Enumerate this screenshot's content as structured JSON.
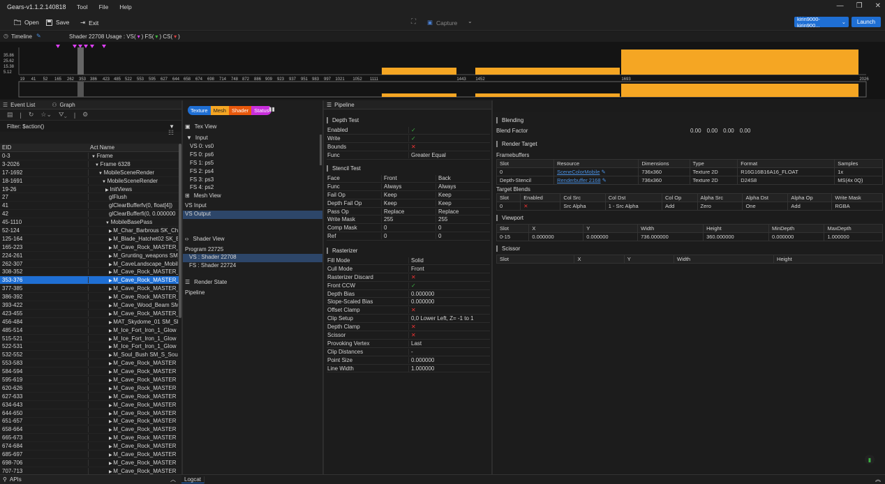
{
  "app": {
    "title": "Gears-v1.1.2.140818"
  },
  "menu": [
    "Tool",
    "File",
    "Help"
  ],
  "toolbar": {
    "open": "Open",
    "save": "Save",
    "exit": "Exit",
    "capture": "Capture",
    "device": "kirin9000-kirin900...",
    "launch": "Launch"
  },
  "timeline": {
    "label": "Timeline",
    "shader_info": "Shader 22708  Usage :  VS(",
    "fs_label": ")  FS(",
    "cs_label": ")  CS(",
    "close_paren": ")",
    "yticks": [
      "35.86",
      "25.62",
      "15.38",
      "5.12"
    ],
    "xticks": [
      "19",
      "41",
      "52",
      "165",
      "262",
      "353",
      "386",
      "423",
      "485",
      "522",
      "553",
      "595",
      "627",
      "644",
      "658",
      "674",
      "698",
      "714",
      "748",
      "872",
      "886",
      "909",
      "923",
      "937",
      "951",
      "983",
      "997",
      "1021",
      "1052",
      "1111",
      "1443",
      "1452",
      "1693",
      "2026"
    ]
  },
  "eventlist": {
    "tab1": "Event List",
    "tab2": "Graph",
    "filter": "Filter: $action()",
    "col_eid": "EID",
    "col_name": "Act Name",
    "rows": [
      [
        "0-3",
        "Frame",
        0,
        "▼"
      ],
      [
        "3-2026",
        "Frame 6328",
        1,
        "▼"
      ],
      [
        "17-1692",
        "MobileSceneRender",
        2,
        "▼"
      ],
      [
        "18-1691",
        "MobileSceneRender",
        3,
        "▼"
      ],
      [
        "19-26",
        "InitViews",
        4,
        "▶"
      ],
      [
        "27",
        "glFlush",
        5,
        ""
      ],
      [
        "41",
        "glClearBufferfv(0, float[4])",
        5,
        ""
      ],
      [
        "42",
        "glClearBufferfi(0, 0.000000",
        5,
        ""
      ],
      [
        "45-1110",
        "MobileBasePass",
        4,
        "▼"
      ],
      [
        "52-124",
        "M_Char_Barbrous SK_Cha",
        5,
        "▶"
      ],
      [
        "125-164",
        "M_Blade_Hatchet02 SK_E",
        5,
        "▶"
      ],
      [
        "165-223",
        "M_Cave_Rock_MASTER_V",
        5,
        "▶"
      ],
      [
        "224-261",
        "M_Grunting_weapons SM_",
        5,
        "▶"
      ],
      [
        "262-307",
        "M_CaveLandscape_Mobile",
        5,
        "▶"
      ],
      [
        "308-352",
        "M_Cave_Rock_MASTER_V",
        5,
        "▶"
      ],
      [
        "353-376",
        "M_Cave_Rock_MASTER_V",
        5,
        "▶"
      ],
      [
        "377-385",
        "M_Cave_Rock_MASTER_V",
        5,
        "▶"
      ],
      [
        "386-392",
        "M_Cave_Rock_MASTER_V",
        5,
        "▶"
      ],
      [
        "393-422",
        "M_Cave_Wood_Beam SM_",
        5,
        "▶"
      ],
      [
        "423-455",
        "M_Cave_Rock_MASTER_V",
        5,
        "▶"
      ],
      [
        "456-484",
        "MAT_Skydome_01 SM_Sk",
        5,
        "▶"
      ],
      [
        "485-514",
        "M_Ice_Fort_Iron_1_Glow S",
        5,
        "▶"
      ],
      [
        "515-521",
        "M_Ice_Fort_Iron_1_Glow S",
        5,
        "▶"
      ],
      [
        "522-531",
        "M_Ice_Fort_Iron_1_Glow S",
        5,
        "▶"
      ],
      [
        "532-552",
        "M_Soul_Bush SM_S_Soul_",
        5,
        "▶"
      ],
      [
        "553-583",
        "M_Cave_Rock_MASTER S",
        5,
        "▶"
      ],
      [
        "584-594",
        "M_Cave_Rock_MASTER S",
        5,
        "▶"
      ],
      [
        "595-619",
        "M_Cave_Rock_MASTER S",
        5,
        "▶"
      ],
      [
        "620-626",
        "M_Cave_Rock_MASTER S",
        5,
        "▶"
      ],
      [
        "627-633",
        "M_Cave_Rock_MASTER S",
        5,
        "▶"
      ],
      [
        "634-643",
        "M_Cave_Rock_MASTER S",
        5,
        "▶"
      ],
      [
        "644-650",
        "M_Cave_Rock_MASTER S",
        5,
        "▶"
      ],
      [
        "651-657",
        "M_Cave_Rock_MASTER S",
        5,
        "▶"
      ],
      [
        "658-664",
        "M_Cave_Rock_MASTER S",
        5,
        "▶"
      ],
      [
        "665-673",
        "M_Cave_Rock_MASTER S",
        5,
        "▶"
      ],
      [
        "674-684",
        "M_Cave_Rock_MASTER S",
        5,
        "▶"
      ],
      [
        "685-697",
        "M_Cave_Rock_MASTER S",
        5,
        "▶"
      ],
      [
        "698-706",
        "M_Cave_Rock_MASTER S",
        5,
        "▶"
      ],
      [
        "707-713",
        "M_Cave_Rock_MASTER S",
        5,
        "▶"
      ]
    ],
    "selected": 15
  },
  "bottom": {
    "apis": "APIs",
    "logcat": "Logcat"
  },
  "mid": {
    "tabs": [
      "Texture",
      "Mesh",
      "Shader",
      "Status"
    ],
    "texview": "Tex View",
    "input": "Input",
    "tex_items": [
      "VS 0: vs0",
      "FS 0: ps6",
      "FS 1: ps5",
      "FS 2: ps4",
      "FS 3: ps3",
      "FS 4: ps2"
    ],
    "meshview": "Mesh View",
    "mesh_items": [
      "VS Input",
      "VS Output"
    ],
    "shaderview": "Shader View",
    "program": "Program 22725",
    "shader_items": [
      "VS : Shader 22708",
      "FS : Shader 22724"
    ],
    "renderstate": "Render State",
    "pipeline": "Pipeline"
  },
  "pipeline": {
    "tab": "Pipeline",
    "depth": {
      "title": "Depth Test",
      "rows": [
        [
          "Enabled",
          "check"
        ],
        [
          "Write",
          "check"
        ],
        [
          "Bounds",
          "cross"
        ],
        [
          "Func",
          "Greater Equal"
        ]
      ]
    },
    "stencil": {
      "title": "Stencil Test",
      "headers": [
        "Face",
        "Front",
        "Back"
      ],
      "rows": [
        [
          "Func",
          "Always",
          "Always"
        ],
        [
          "Fail Op",
          "Keep",
          "Keep"
        ],
        [
          "Depth Fail Op",
          "Keep",
          "Keep"
        ],
        [
          "Pass Op",
          "Replace",
          "Replace"
        ],
        [
          "Write Mask",
          "255",
          "255"
        ],
        [
          "Comp Mask",
          "0",
          "0"
        ],
        [
          "Ref",
          "0",
          "0"
        ]
      ]
    },
    "raster": {
      "title": "Rasterizer",
      "rows": [
        [
          "Fill Mode",
          "Solid"
        ],
        [
          "Cull Mode",
          "Front"
        ],
        [
          "Rasterizer Discard",
          "cross"
        ],
        [
          "Front CCW",
          "check"
        ],
        [
          "Depth Bias",
          "0.000000"
        ],
        [
          "Slope-Scaled Bias",
          "0.000000"
        ],
        [
          "Offset Clamp",
          "cross"
        ],
        [
          "Clip Setup",
          "0,0 Lower Left, Z= -1 to 1"
        ],
        [
          "Depth Clamp",
          "cross"
        ],
        [
          "Scissor",
          "cross"
        ],
        [
          "Provoking Vertex",
          "Last"
        ],
        [
          "Clip Distances",
          "-"
        ],
        [
          "Point Size",
          "0.000000"
        ],
        [
          "Line Width",
          "1.000000"
        ]
      ]
    }
  },
  "right": {
    "blending": "Blending",
    "blend_factor_label": "Blend Factor",
    "blend_factor": [
      "0.00",
      "0.00",
      "0.00",
      "0.00"
    ],
    "render_target": "Render Target",
    "framebuffers": "Framebuffers",
    "fb_headers": [
      "Slot",
      "Resource",
      "Dimensions",
      "Type",
      "Format",
      "Samples"
    ],
    "fb_rows": [
      [
        "0",
        "SceneColorMobile",
        "736x360",
        "Texture 2D",
        "R16G16B16A16_FLOAT",
        "1x"
      ],
      [
        "Depth-Stencil",
        "Renderbuffer 2168",
        "736x360",
        "Texture 2D",
        "D24S8",
        "MS(4x 0Q)"
      ]
    ],
    "target_blends": "Target Blends",
    "tb_headers": [
      "Slot",
      "Enabled",
      "Col Src",
      "Col Dst",
      "Col Op",
      "Alpha Src",
      "Alpha Dst",
      "Alpha Op",
      "Write Mask"
    ],
    "tb_row": [
      "0",
      "cross",
      "Src Alpha",
      "1 - Src Alpha",
      "Add",
      "Zero",
      "One",
      "Add",
      "RGBA"
    ],
    "viewport": "Viewport",
    "vp_headers": [
      "Slot",
      "X",
      "Y",
      "Width",
      "Height",
      "MinDepth",
      "MaxDepth"
    ],
    "vp_row": [
      "0-15",
      "0.000000",
      "0.000000",
      "736.000000",
      "360.000000",
      "0.000000",
      "1.000000"
    ],
    "scissor": "Scissor",
    "sc_headers": [
      "Slot",
      "X",
      "Y",
      "Width",
      "Height"
    ]
  },
  "colors": {
    "accent": "#1f6fd4",
    "bar": "#f5a623",
    "texture_tab": "#1f6fd4",
    "mesh_tab": "#f5a623",
    "shader_tab": "#e8590c",
    "status_tab": "#c82edb"
  }
}
